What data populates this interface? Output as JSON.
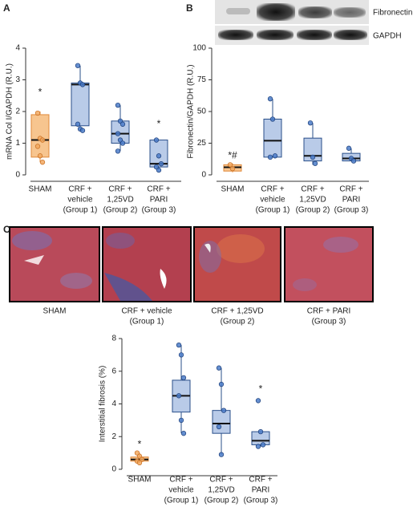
{
  "panel_labels": [
    "A",
    "B",
    "C"
  ],
  "blot_labels": [
    "Fibronectin",
    "GAPDH"
  ],
  "images": [
    [
      "SHAM"
    ],
    [
      "CRF + vehicle",
      "(Group 1)"
    ],
    [
      "CRF + 1,25VD",
      "(Group 2)"
    ],
    [
      "CRF + PARI",
      "(Group 3)"
    ]
  ],
  "chart_data": [
    {
      "type": "box",
      "y_label": "mRNA Col I/GAPDH (R.U.)",
      "categories": [
        [
          "SHAM"
        ],
        [
          "CRF +",
          "vehicle",
          "(Group 1)"
        ],
        [
          "CRF +",
          "1,25VD",
          "(Group 2)"
        ],
        [
          "CRF +",
          "PARI",
          "(Group 3)"
        ]
      ],
      "ylim": [
        0,
        4
      ],
      "yticks": [
        0,
        1,
        2,
        3,
        4
      ],
      "boxes": [
        {
          "min": 0.4,
          "q1": 0.56,
          "median": 1.1,
          "q3": 1.9,
          "max": 2.0,
          "points": [
            1.95,
            1.15,
            1.1,
            0.9,
            0.6,
            0.4
          ],
          "color": "#f7c58f",
          "annotation": "*",
          "annotation_y": 2.6
        },
        {
          "min": 1.4,
          "q1": 1.55,
          "median": 2.85,
          "q3": 2.9,
          "max": 3.45,
          "points": [
            3.45,
            2.9,
            2.85,
            1.6,
            1.45,
            1.4
          ],
          "color": "#b9cbe8"
        },
        {
          "min": 0.75,
          "q1": 1.0,
          "median": 1.3,
          "q3": 1.7,
          "max": 2.2,
          "points": [
            2.2,
            1.7,
            1.6,
            1.3,
            1.1,
            1.0,
            0.75
          ],
          "color": "#b9cbe8"
        },
        {
          "min": 0.15,
          "q1": 0.25,
          "median": 0.35,
          "q3": 1.1,
          "max": 1.1,
          "points": [
            1.1,
            0.6,
            0.35,
            0.25,
            0.15
          ],
          "color": "#b9cbe8",
          "annotation": "*",
          "annotation_y": 1.6
        }
      ]
    },
    {
      "type": "box",
      "y_label": "Fibronectin/GAPDH (R.U.)",
      "categories": [
        [
          "SHAM"
        ],
        [
          "CRF +",
          "vehicle",
          "(Group 1)"
        ],
        [
          "CRF +",
          "1,25VD",
          "(Group 2)"
        ],
        [
          "CRF +",
          "PARI",
          "(Group 3)"
        ]
      ],
      "ylim": [
        0,
        100
      ],
      "yticks": [
        0,
        25,
        50,
        75,
        100
      ],
      "boxes": [
        {
          "min": 2,
          "q1": 3,
          "median": 6,
          "q3": 8,
          "max": 9,
          "points": [
            8,
            5
          ],
          "color": "#f7c58f",
          "annotation": "*#",
          "annotation_y": 15
        },
        {
          "min": 14,
          "q1": 14,
          "median": 27,
          "q3": 44,
          "max": 60,
          "points": [
            60,
            44,
            15,
            14
          ],
          "color": "#b9cbe8"
        },
        {
          "min": 8,
          "q1": 11,
          "median": 15,
          "q3": 29,
          "max": 41,
          "points": [
            41,
            14,
            9
          ],
          "color": "#b9cbe8"
        },
        {
          "min": 11,
          "q1": 11,
          "median": 13,
          "q3": 17,
          "max": 21,
          "points": [
            21,
            13,
            11
          ],
          "color": "#b9cbe8"
        }
      ]
    },
    {
      "type": "box",
      "y_label": "Interstitial fibrosis (%)",
      "categories": [
        [
          "SHAM"
        ],
        [
          "CRF +",
          "vehicle",
          "(Group 1)"
        ],
        [
          "CRF +",
          "1,25VD",
          "(Group 2)"
        ],
        [
          "CRF +",
          "PARI",
          "(Group 3)"
        ]
      ],
      "ylim": [
        0,
        8
      ],
      "yticks": [
        0,
        2,
        4,
        6,
        8
      ],
      "boxes": [
        {
          "min": 0.4,
          "q1": 0.5,
          "median": 0.6,
          "q3": 0.75,
          "max": 1.0,
          "points": [
            1.0,
            0.8,
            0.6,
            0.5,
            0.4
          ],
          "color": "#f7c58f",
          "annotation": "*",
          "annotation_y": 1.5
        },
        {
          "min": 2.2,
          "q1": 3.5,
          "median": 4.5,
          "q3": 5.45,
          "max": 7.6,
          "points": [
            7.6,
            7.0,
            5.6,
            4.5,
            3.0,
            2.2
          ],
          "color": "#b9cbe8"
        },
        {
          "min": 0.9,
          "q1": 2.2,
          "median": 2.8,
          "q3": 3.6,
          "max": 6.2,
          "points": [
            6.2,
            5.2,
            3.6,
            2.6,
            0.9
          ],
          "color": "#b9cbe8"
        },
        {
          "min": 1.4,
          "q1": 1.5,
          "median": 1.75,
          "q3": 2.3,
          "max": 2.3,
          "points": [
            4.2,
            2.3,
            1.5,
            1.4
          ],
          "color": "#b9cbe8",
          "annotation": "*",
          "annotation_y": 4.9
        }
      ]
    }
  ]
}
